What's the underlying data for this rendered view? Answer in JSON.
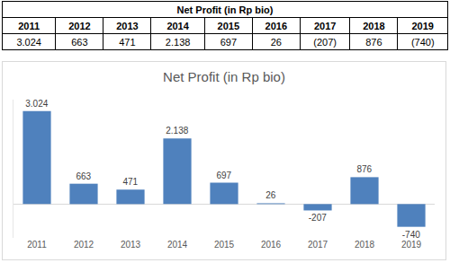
{
  "table": {
    "title": "Net Profit (in Rp bio)",
    "header": [
      "2011",
      "2012",
      "2013",
      "2014",
      "2015",
      "2016",
      "2017",
      "2018",
      "2019"
    ],
    "rows": [
      [
        "3.024",
        "663",
        "471",
        "2.138",
        "697",
        "26",
        "(207)",
        "876",
        "(740)"
      ]
    ]
  },
  "chart_data": {
    "type": "bar",
    "title": "Net Profit (in Rp bio)",
    "categories": [
      "2011",
      "2012",
      "2013",
      "2014",
      "2015",
      "2016",
      "2017",
      "2018",
      "2019"
    ],
    "values": [
      3024,
      663,
      471,
      2138,
      697,
      26,
      -207,
      876,
      -740
    ],
    "value_labels": [
      "3.024",
      "663",
      "471",
      "2.138",
      "697",
      "26",
      "-207",
      "876",
      "-740"
    ],
    "color": "#4f81bd",
    "ylim": [
      -1100,
      3400
    ],
    "grid": false,
    "data_labels": true,
    "tick_labels": "x"
  }
}
